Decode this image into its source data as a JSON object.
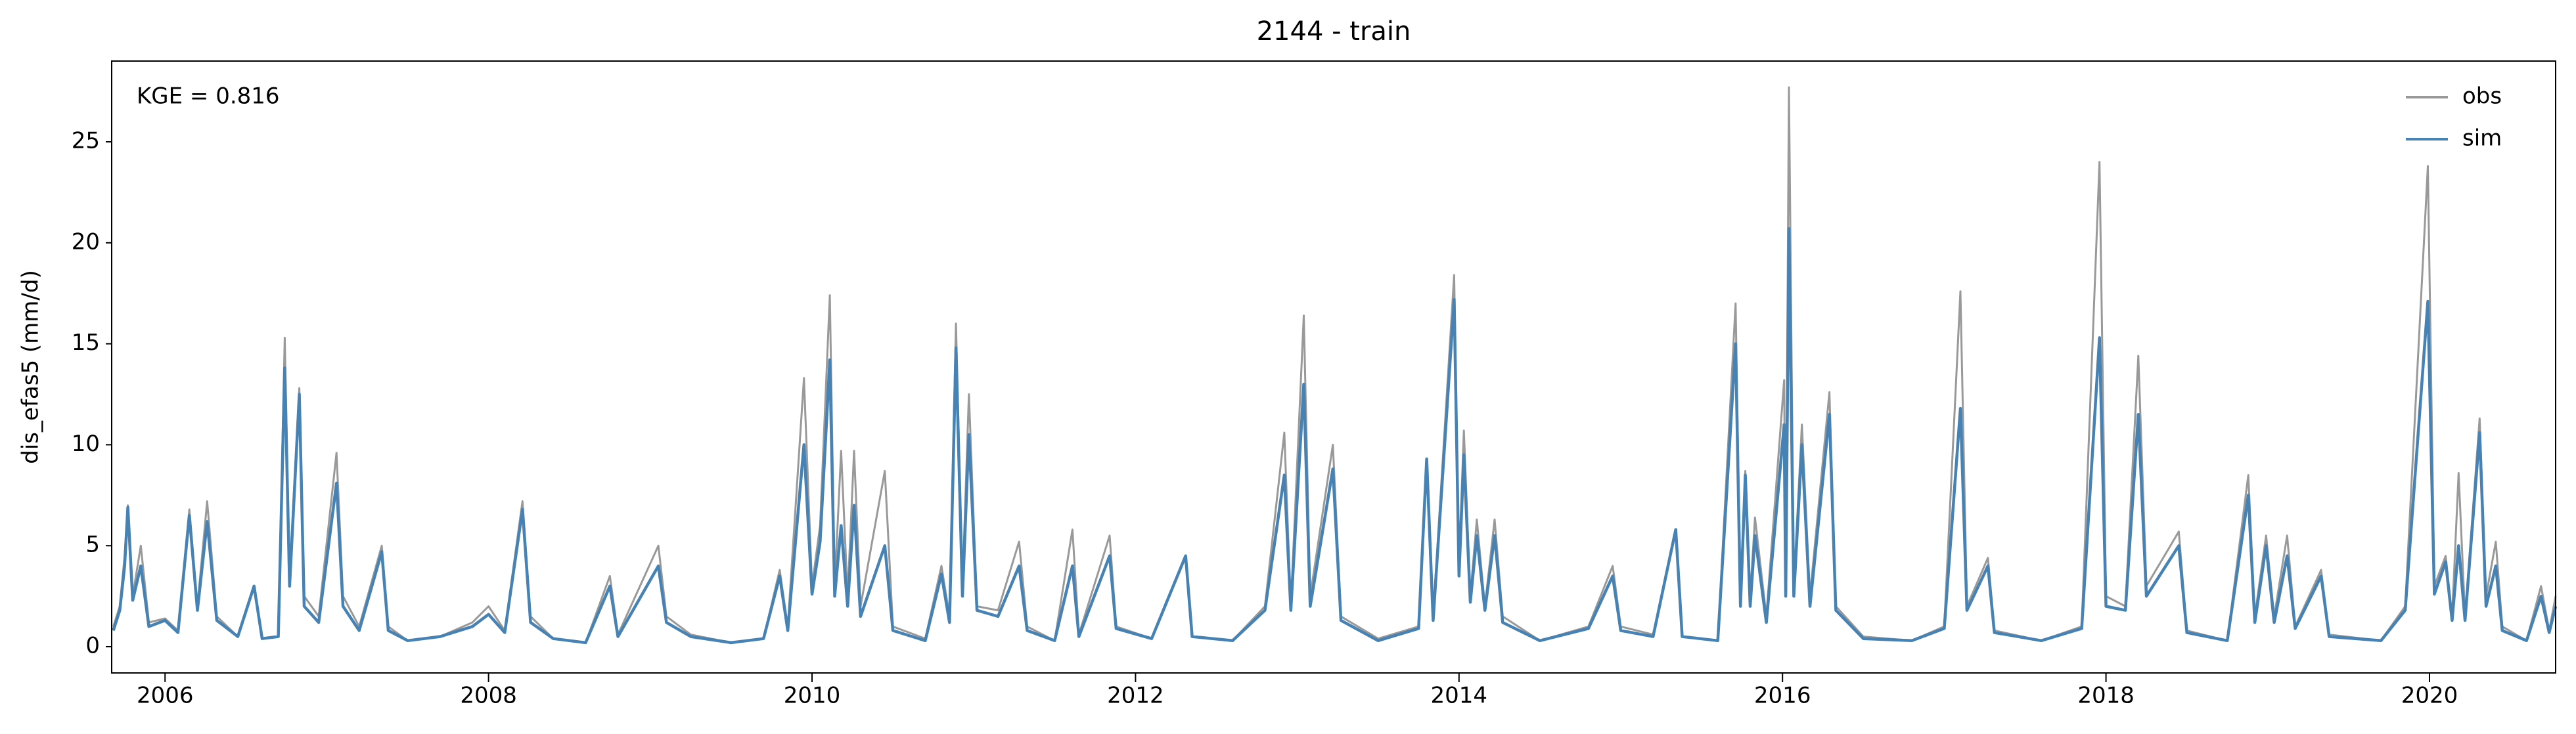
{
  "chart_data": {
    "type": "line",
    "title": "2144 - train",
    "ylabel": "dis_efas5 (mm/d)",
    "annotation": "KGE = 0.816",
    "legend": "upper right",
    "xlim": [
      2005.67,
      2020.78
    ],
    "xticks": [
      2006,
      2008,
      2010,
      2012,
      2014,
      2016,
      2018,
      2020
    ],
    "ylim": [
      -1.3,
      29
    ],
    "yticks": [
      0,
      5,
      10,
      15,
      20,
      25
    ],
    "x": [
      2005.68,
      2005.72,
      2005.75,
      2005.77,
      2005.8,
      2005.85,
      2005.9,
      2006.0,
      2006.08,
      2006.15,
      2006.2,
      2006.26,
      2006.32,
      2006.45,
      2006.55,
      2006.6,
      2006.7,
      2006.74,
      2006.77,
      2006.83,
      2006.86,
      2006.95,
      2007.06,
      2007.1,
      2007.2,
      2007.34,
      2007.38,
      2007.5,
      2007.7,
      2007.9,
      2008.0,
      2008.1,
      2008.21,
      2008.26,
      2008.4,
      2008.6,
      2008.75,
      2008.8,
      2009.05,
      2009.1,
      2009.25,
      2009.5,
      2009.7,
      2009.8,
      2009.85,
      2009.95,
      2010.0,
      2010.05,
      2010.11,
      2010.14,
      2010.18,
      2010.22,
      2010.26,
      2010.3,
      2010.45,
      2010.5,
      2010.7,
      2010.8,
      2010.85,
      2010.89,
      2010.93,
      2010.97,
      2011.02,
      2011.15,
      2011.28,
      2011.33,
      2011.5,
      2011.61,
      2011.65,
      2011.84,
      2011.88,
      2012.1,
      2012.31,
      2012.35,
      2012.6,
      2012.8,
      2012.92,
      2012.96,
      2013.04,
      2013.08,
      2013.22,
      2013.27,
      2013.5,
      2013.75,
      2013.8,
      2013.84,
      2013.97,
      2014.0,
      2014.03,
      2014.07,
      2014.11,
      2014.16,
      2014.22,
      2014.27,
      2014.5,
      2014.8,
      2014.95,
      2015.0,
      2015.2,
      2015.34,
      2015.38,
      2015.6,
      2015.71,
      2015.74,
      2015.77,
      2015.8,
      2015.83,
      2015.9,
      2016.01,
      2016.02,
      2016.04,
      2016.07,
      2016.12,
      2016.17,
      2016.29,
      2016.33,
      2016.5,
      2016.8,
      2017.0,
      2017.1,
      2017.14,
      2017.27,
      2017.31,
      2017.6,
      2017.85,
      2017.96,
      2018.0,
      2018.12,
      2018.2,
      2018.25,
      2018.45,
      2018.5,
      2018.75,
      2018.88,
      2018.92,
      2018.99,
      2019.04,
      2019.12,
      2019.17,
      2019.33,
      2019.38,
      2019.7,
      2019.85,
      2019.99,
      2020.03,
      2020.1,
      2020.14,
      2020.18,
      2020.22,
      2020.31,
      2020.35,
      2020.41,
      2020.45,
      2020.6,
      2020.69,
      2020.74,
      2020.78
    ],
    "series": [
      {
        "name": "obs",
        "color": "#999999",
        "values": [
          1.0,
          2.0,
          4.5,
          7.0,
          2.5,
          5.0,
          1.2,
          1.4,
          0.8,
          6.8,
          2.0,
          7.2,
          1.5,
          0.5,
          3.0,
          0.4,
          0.5,
          15.3,
          3.5,
          12.8,
          2.5,
          1.5,
          9.6,
          2.5,
          1.0,
          5.0,
          1.0,
          0.3,
          0.5,
          1.2,
          2.0,
          0.8,
          7.2,
          1.5,
          0.4,
          0.2,
          3.5,
          0.6,
          5.0,
          1.5,
          0.6,
          0.2,
          0.4,
          3.8,
          1.0,
          13.3,
          3.0,
          6.0,
          17.4,
          3.0,
          9.7,
          2.5,
          9.7,
          2.0,
          8.7,
          1.0,
          0.4,
          4.0,
          1.5,
          16.0,
          3.0,
          12.5,
          2.0,
          1.8,
          5.2,
          1.0,
          0.3,
          5.8,
          0.6,
          5.5,
          1.0,
          0.4,
          4.5,
          0.5,
          0.3,
          2.0,
          10.6,
          2.0,
          16.4,
          2.5,
          10.0,
          1.5,
          0.4,
          1.0,
          9.3,
          1.5,
          18.4,
          4.0,
          10.7,
          2.5,
          6.3,
          2.0,
          6.3,
          1.5,
          0.3,
          1.0,
          4.0,
          1.0,
          0.6,
          5.8,
          0.5,
          0.3,
          17.0,
          2.5,
          8.7,
          2.5,
          6.4,
          1.5,
          13.2,
          3.0,
          27.7,
          3.0,
          11.0,
          2.5,
          12.6,
          2.0,
          0.5,
          0.3,
          1.0,
          17.6,
          2.0,
          4.4,
          0.8,
          0.3,
          1.0,
          24.0,
          2.5,
          2.0,
          14.4,
          3.0,
          5.7,
          0.8,
          0.3,
          8.5,
          1.5,
          5.5,
          1.5,
          5.5,
          1.0,
          3.8,
          0.6,
          0.3,
          2.0,
          23.8,
          3.0,
          4.5,
          1.5,
          8.6,
          1.5,
          11.3,
          2.5,
          5.2,
          1.0,
          0.3,
          3.0,
          0.8,
          2.5
        ]
      },
      {
        "name": "sim",
        "color": "#4682b4",
        "values": [
          0.8,
          1.8,
          4.0,
          6.9,
          2.3,
          4.0,
          1.0,
          1.3,
          0.7,
          6.5,
          1.8,
          6.2,
          1.3,
          0.5,
          3.0,
          0.4,
          0.5,
          13.8,
          3.0,
          12.5,
          2.0,
          1.2,
          8.1,
          2.0,
          0.8,
          4.7,
          0.8,
          0.3,
          0.5,
          1.0,
          1.6,
          0.7,
          6.8,
          1.2,
          0.4,
          0.2,
          3.0,
          0.5,
          4.0,
          1.2,
          0.5,
          0.2,
          0.4,
          3.5,
          0.8,
          10.0,
          2.6,
          5.2,
          14.2,
          2.5,
          6.0,
          2.0,
          7.0,
          1.5,
          5.0,
          0.8,
          0.3,
          3.6,
          1.2,
          14.8,
          2.5,
          10.5,
          1.8,
          1.5,
          4.0,
          0.8,
          0.3,
          4.0,
          0.5,
          4.5,
          0.9,
          0.4,
          4.5,
          0.5,
          0.3,
          1.8,
          8.5,
          1.8,
          13.0,
          2.0,
          8.8,
          1.3,
          0.3,
          0.9,
          9.3,
          1.3,
          17.2,
          3.5,
          9.5,
          2.2,
          5.5,
          1.8,
          5.5,
          1.2,
          0.3,
          0.9,
          3.5,
          0.8,
          0.5,
          5.8,
          0.5,
          0.3,
          15.0,
          2.0,
          8.5,
          2.0,
          5.5,
          1.2,
          11.0,
          2.5,
          20.7,
          2.5,
          10.0,
          2.0,
          11.5,
          1.8,
          0.4,
          0.3,
          0.9,
          11.8,
          1.8,
          4.0,
          0.7,
          0.3,
          0.9,
          15.3,
          2.0,
          1.8,
          11.5,
          2.5,
          5.0,
          0.7,
          0.3,
          7.5,
          1.2,
          5.0,
          1.2,
          4.5,
          0.9,
          3.5,
          0.5,
          0.3,
          1.8,
          17.1,
          2.6,
          4.2,
          1.3,
          5.0,
          1.3,
          10.6,
          2.0,
          4.0,
          0.8,
          0.3,
          2.5,
          0.7,
          2.0
        ]
      }
    ]
  }
}
